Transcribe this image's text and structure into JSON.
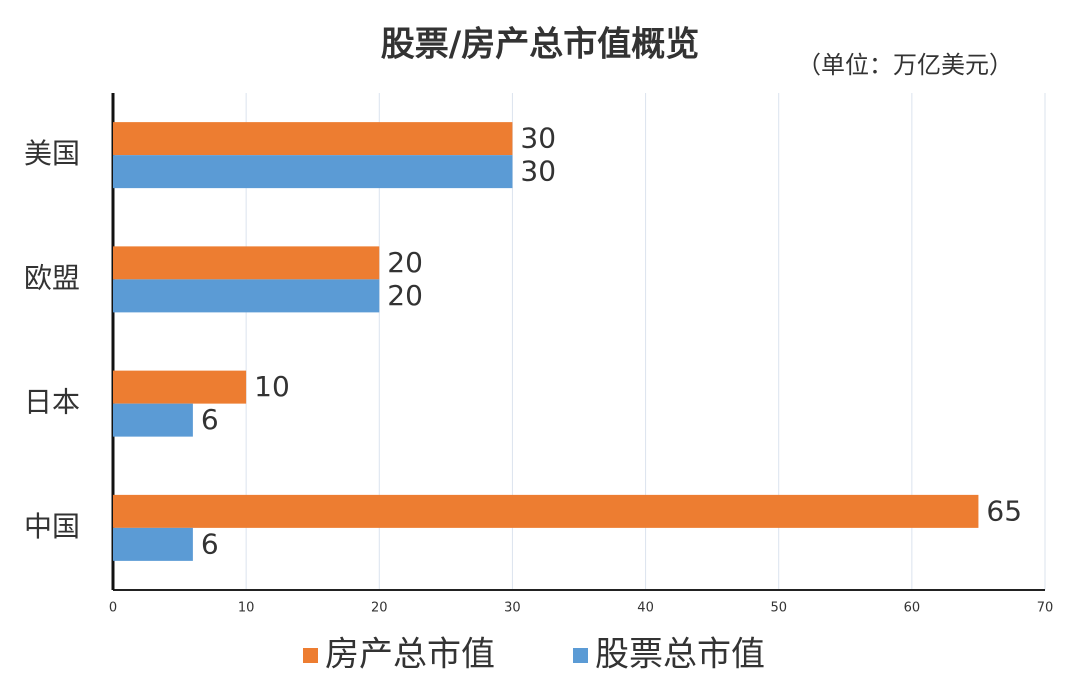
{
  "chart_data": {
    "type": "bar",
    "orientation": "horizontal",
    "title": "股票/房产总市值概览",
    "subtitle": "（单位：万亿美元）",
    "categories": [
      "美国",
      "欧盟",
      "日本",
      "中国"
    ],
    "series": [
      {
        "name": "房产总市值",
        "color": "#ed7d31",
        "values": [
          30,
          20,
          10,
          65
        ]
      },
      {
        "name": "股票总市值",
        "color": "#5b9bd5",
        "values": [
          30,
          20,
          6,
          6
        ]
      }
    ],
    "xlim": [
      0,
      70
    ],
    "xticks": [
      0,
      10,
      20,
      30,
      40,
      50,
      60,
      70
    ],
    "grid": true
  }
}
